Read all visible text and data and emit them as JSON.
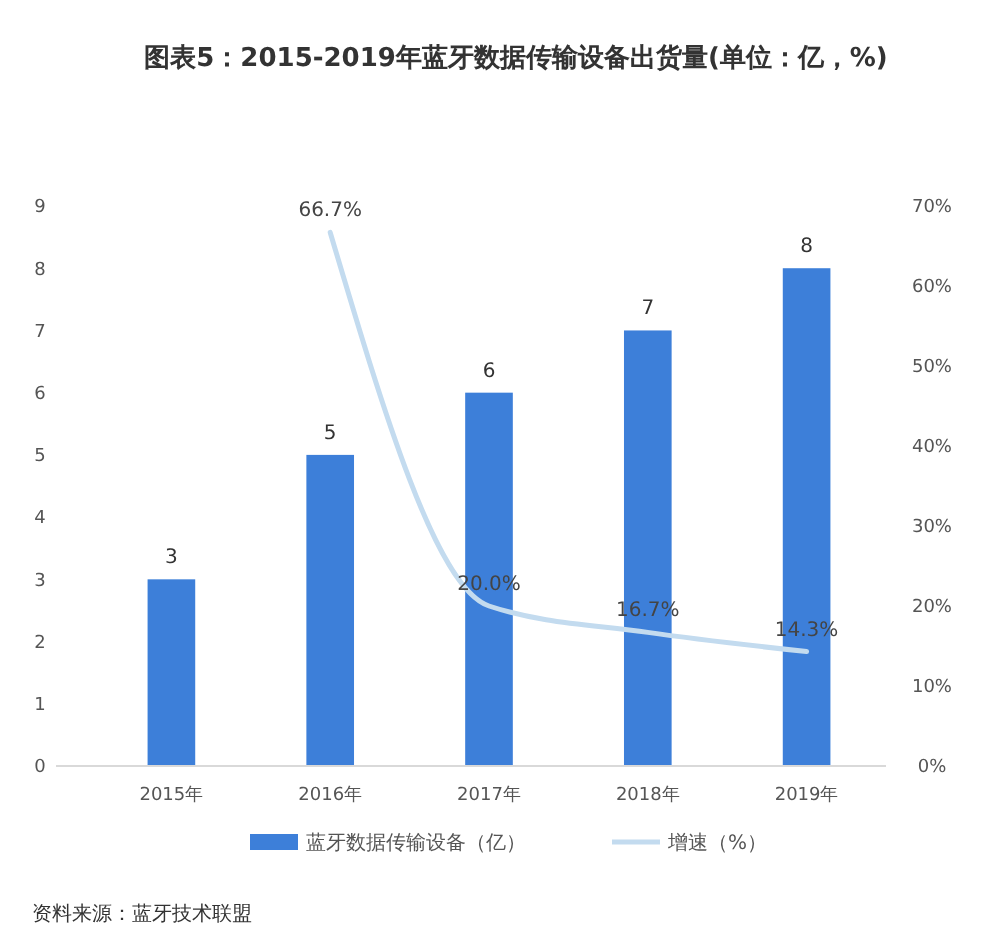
{
  "chart_data": {
    "type": "bar",
    "title": "图表5：2015-2019年蓝牙数据传输设备出货量(单位：亿，%)",
    "categories": [
      "2015年",
      "2016年",
      "2017年",
      "2018年",
      "2019年"
    ],
    "series": [
      {
        "name": "蓝牙数据传输设备（亿）",
        "color": "#3d7fd9",
        "values": [
          3,
          5,
          6,
          7,
          8
        ]
      },
      {
        "name": "增速（%）",
        "type": "line",
        "axis": "y2",
        "color": "#c3dbef",
        "values": [
          null,
          66.7,
          20.0,
          16.7,
          14.3
        ],
        "value_labels": [
          null,
          "66.7%",
          "20.0%",
          "16.7%",
          "14.3%"
        ]
      }
    ],
    "ylim": [
      0,
      9
    ],
    "yticks": [
      0,
      1,
      2,
      3,
      4,
      5,
      6,
      7,
      8,
      9
    ],
    "y2lim": [
      0,
      70
    ],
    "y2ticks": [
      {
        "value": 0,
        "label": "0%"
      },
      {
        "value": 10,
        "label": "10%"
      },
      {
        "value": 20,
        "label": "20%"
      },
      {
        "value": 30,
        "label": "30%"
      },
      {
        "value": 40,
        "label": "40%"
      },
      {
        "value": 50,
        "label": "50%"
      },
      {
        "value": 60,
        "label": "60%"
      },
      {
        "value": 70,
        "label": "70%"
      }
    ],
    "data_labels": true,
    "legend": "bottom",
    "grid": false,
    "annotations": [
      "资料来源：蓝牙技术联盟"
    ]
  }
}
